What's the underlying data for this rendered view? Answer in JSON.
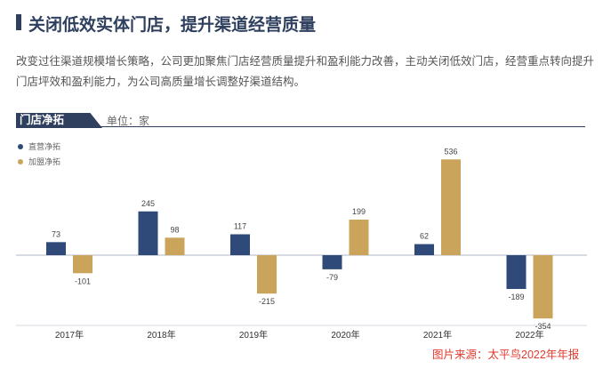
{
  "header": {
    "title": "关闭低效实体门店，提升渠道经营质量",
    "description": "改变过往渠道规模增长策略，公司更加聚焦门店经营质量提升和盈利能力改善，主动关闭低效门店，经营重点转向提升门店坪效和盈利能力，为公司高质量增长调整好渠道结构。"
  },
  "chart_header": {
    "tab_label": "门店净拓",
    "unit_label": "单位：家"
  },
  "colors": {
    "series_a": "#2f4a78",
    "series_b": "#c9a45a",
    "title": "#2f3f5e",
    "source": "#e03a2f"
  },
  "chart_data": {
    "type": "bar",
    "categories": [
      "2017年",
      "2018年",
      "2019年",
      "2020年",
      "2021年",
      "2022年"
    ],
    "series": [
      {
        "name": "直营净拓",
        "values": [
          73,
          245,
          117,
          -79,
          62,
          -189
        ]
      },
      {
        "name": "加盟净拓",
        "values": [
          -101,
          98,
          -215,
          199,
          536,
          -354
        ]
      }
    ],
    "title": "门店净拓",
    "xlabel": "",
    "ylabel": "单位：家",
    "ylim": [
      -380,
      560
    ]
  },
  "source": "图片来源：太平鸟2022年年报"
}
